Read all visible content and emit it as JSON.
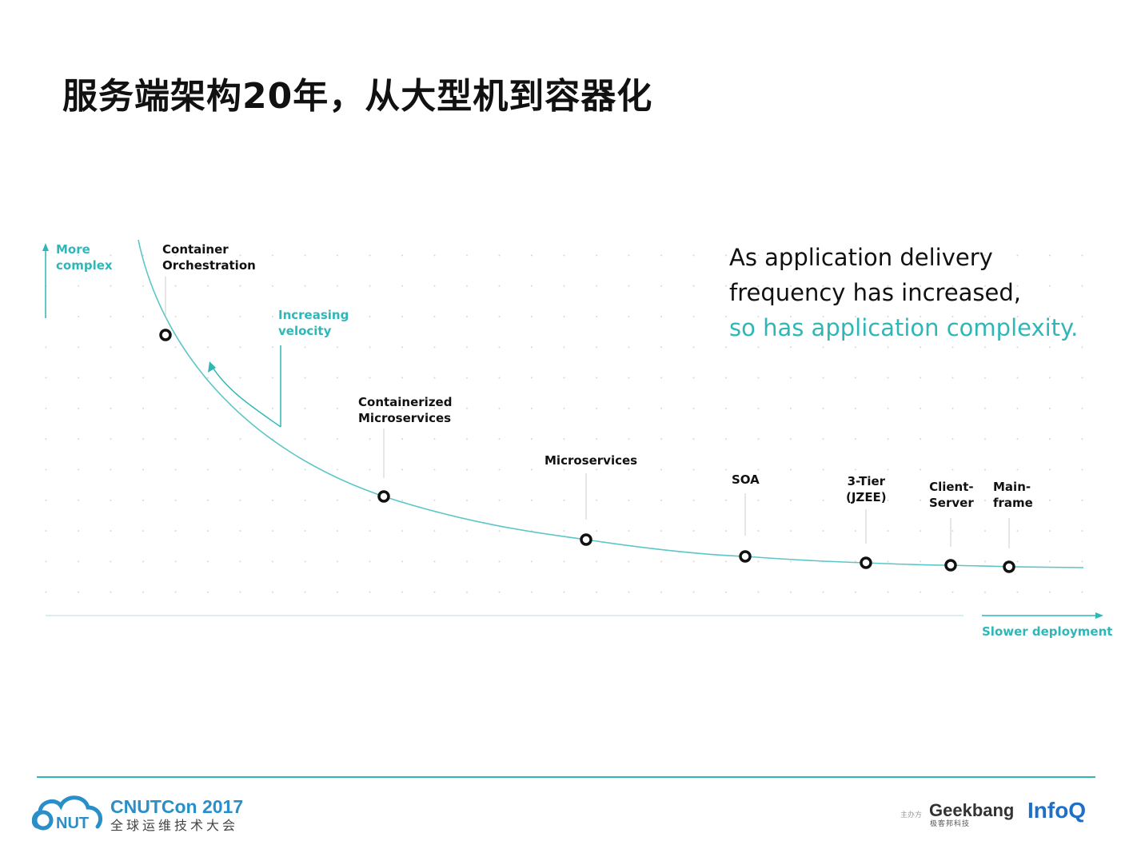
{
  "title": "服务端架构20年，从大型机到容器化",
  "diagram": {
    "y_axis_label": [
      "More",
      "complex"
    ],
    "x_axis_label": "Slower deployment",
    "velocity_label": [
      "Increasing",
      "velocity"
    ],
    "stages": [
      {
        "lines": [
          "Container",
          "Orchestration"
        ]
      },
      {
        "lines": [
          "Containerized",
          "Microservices"
        ]
      },
      {
        "lines": [
          "Microservices"
        ]
      },
      {
        "lines": [
          "SOA"
        ]
      },
      {
        "lines": [
          "3-Tier",
          "(JZEE)"
        ]
      },
      {
        "lines": [
          "Client-",
          "Server"
        ]
      },
      {
        "lines": [
          "Main-",
          "frame"
        ]
      }
    ],
    "headline": {
      "line1": "As application delivery",
      "line2": "frequency has increased,",
      "line3": "so has application complexity."
    }
  },
  "footer": {
    "conference_name": "CNUTCon 2017",
    "conference_sub": "全球运维技术大会",
    "host_label": "主办方",
    "geekbang": "Geekbang",
    "geekbang_cn": "极客邦科技",
    "infoq": "InfoQ"
  },
  "colors": {
    "accent": "#2fb7b8",
    "text": "#111111"
  }
}
